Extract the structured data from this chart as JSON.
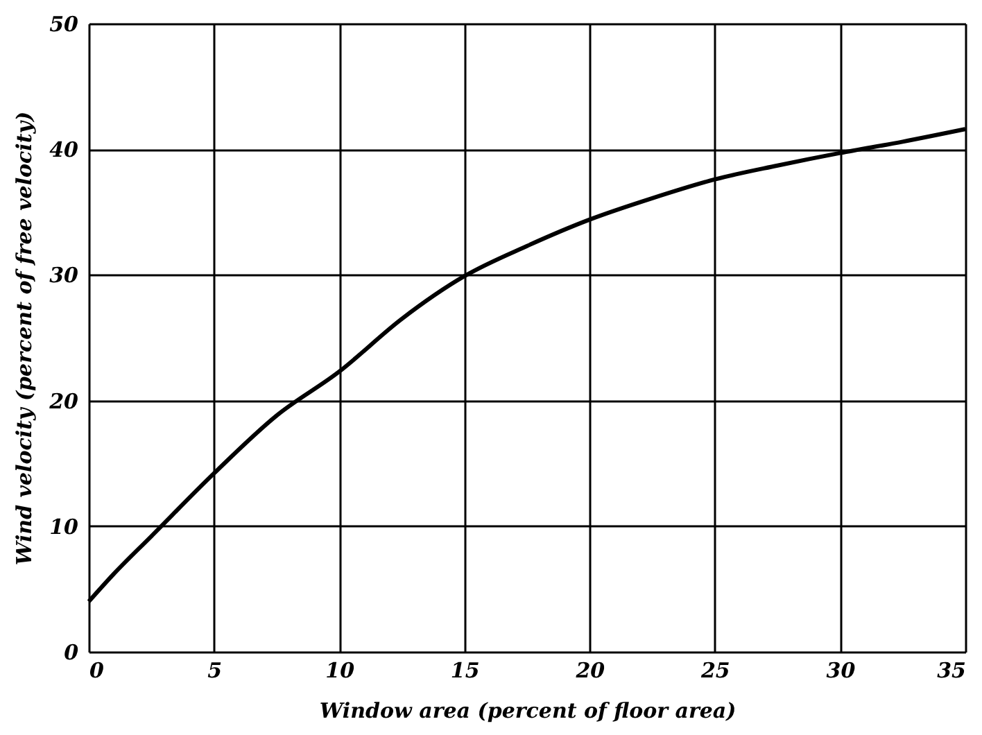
{
  "chart_data": {
    "type": "line",
    "xlabel": "Window area (percent of floor area)",
    "ylabel": "Wind velocity (percent of free velocity)",
    "x": [
      0,
      1,
      2.5,
      5,
      7.5,
      10,
      12.5,
      15,
      17.5,
      20,
      22.5,
      25,
      27.5,
      30,
      32.5,
      35
    ],
    "series": [
      {
        "color": "#000000",
        "values": [
          4,
          6.2,
          9.2,
          14.2,
          18.8,
          22.3,
          26.5,
          29.9,
          32.3,
          34.4,
          36.1,
          37.6,
          38.7,
          39.7,
          40.6,
          41.6
        ]
      }
    ],
    "xlim": [
      0,
      35
    ],
    "xticks": [
      0,
      5,
      10,
      15,
      20,
      25,
      30,
      35
    ],
    "ylim": [
      0,
      50
    ],
    "yticks": [
      0,
      10,
      20,
      30,
      40,
      50
    ],
    "grid": true,
    "marker": "none",
    "line_style": "solid"
  }
}
